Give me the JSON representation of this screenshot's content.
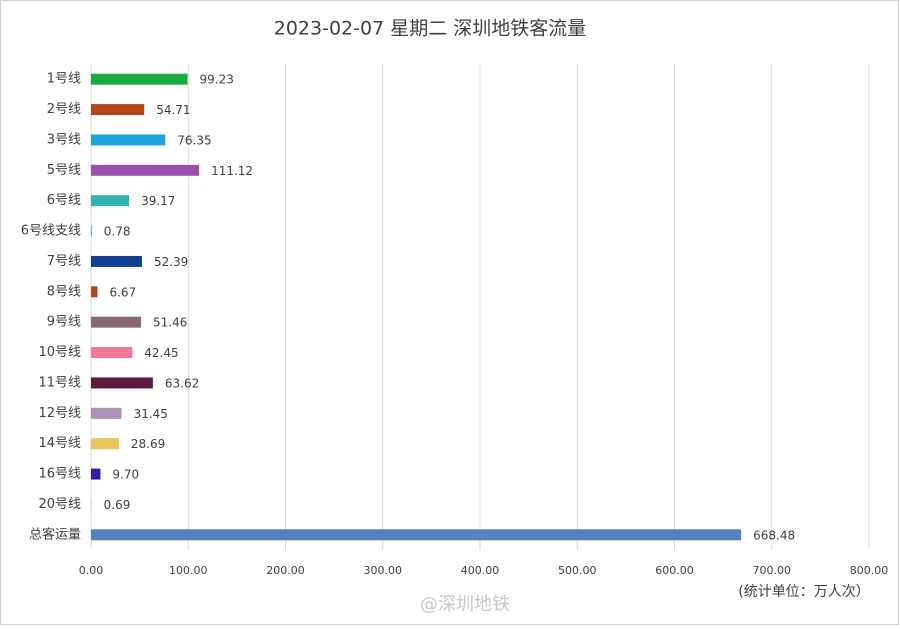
{
  "chart_data": {
    "type": "bar",
    "orientation": "horizontal",
    "title": "2023-02-07 星期二 深圳地铁客流量",
    "categories": [
      "1号线",
      "2号线",
      "3号线",
      "5号线",
      "6号线",
      "6号线支线",
      "7号线",
      "8号线",
      "9号线",
      "10号线",
      "11号线",
      "12号线",
      "14号线",
      "16号线",
      "20号线",
      "总客运量"
    ],
    "values": [
      99.23,
      54.71,
      76.35,
      111.12,
      39.17,
      0.78,
      52.39,
      6.67,
      51.46,
      42.45,
      63.62,
      31.45,
      28.69,
      9.7,
      0.69,
      668.48
    ],
    "value_labels": [
      "99.23",
      "54.71",
      "76.35",
      "111.12",
      "39.17",
      "0.78",
      "52.39",
      "6.67",
      "51.46",
      "42.45",
      "63.62",
      "31.45",
      "28.69",
      "9.70",
      "0.69",
      "668.48"
    ],
    "colors": [
      "#1aab40",
      "#b5441a",
      "#1ea6d9",
      "#9b4fa8",
      "#2fb5ad",
      "#3aa9c8",
      "#123f8f",
      "#b5441a",
      "#8a6a72",
      "#f07896",
      "#5f1a3f",
      "#a991b8",
      "#e8c35e",
      "#3b1aa3",
      "#9edcd6",
      "#5582be"
    ],
    "xlim": [
      0,
      800
    ],
    "xticks": [
      {
        "value": 0,
        "label": "0.00"
      },
      {
        "value": 100,
        "label": "100.00"
      },
      {
        "value": 200,
        "label": "200.00"
      },
      {
        "value": 300,
        "label": "300.00"
      },
      {
        "value": 400,
        "label": "400.00"
      },
      {
        "value": 500,
        "label": "500.00"
      },
      {
        "value": 600,
        "label": "600.00"
      },
      {
        "value": 700,
        "label": "700.00"
      },
      {
        "value": 800,
        "label": "800.00"
      }
    ],
    "grid": true,
    "annotations": [
      "(统计单位：万人次）",
      "@深圳地铁"
    ]
  }
}
